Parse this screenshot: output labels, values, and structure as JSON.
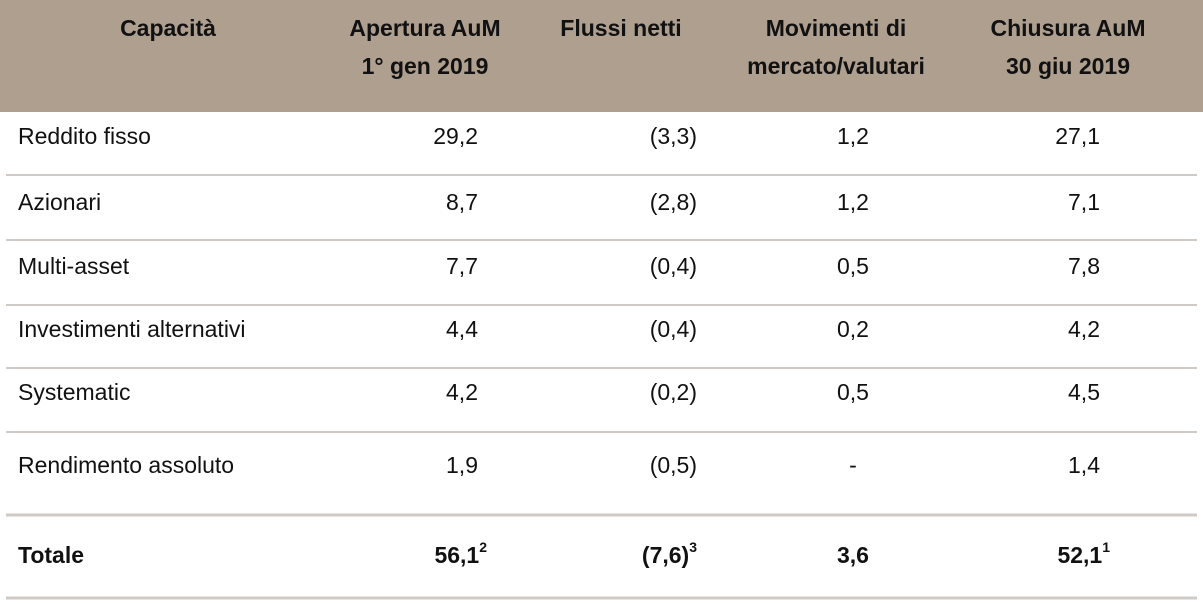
{
  "table": {
    "columns": [
      {
        "lines": [
          "Capacità"
        ]
      },
      {
        "lines": [
          "Apertura AuM",
          "1° gen 2019"
        ]
      },
      {
        "lines": [
          "Flussi netti"
        ]
      },
      {
        "lines": [
          "Movimenti di",
          "mercato/valutari"
        ]
      },
      {
        "lines": [
          "Chiusura AuM",
          "30 giu 2019"
        ]
      }
    ],
    "rows": [
      {
        "label": "Reddito fisso",
        "cells": [
          "29,2",
          "(3,3)",
          "1,2",
          "27,1"
        ]
      },
      {
        "label": "Azionari",
        "cells": [
          "8,7",
          "(2,8)",
          "1,2",
          "7,1"
        ]
      },
      {
        "label": "Multi-asset",
        "cells": [
          "7,7",
          "(0,4)",
          "0,5",
          "7,8"
        ]
      },
      {
        "label": "Investimenti alternativi",
        "cells": [
          "4,4",
          "(0,4)",
          "0,2",
          "4,2"
        ]
      },
      {
        "label": "Systematic",
        "cells": [
          "4,2",
          "(0,2)",
          "0,5",
          "4,5"
        ]
      },
      {
        "label": "Rendimento assoluto",
        "cells": [
          "1,9",
          "(0,5)",
          "-",
          "1,4"
        ]
      }
    ],
    "total": {
      "label": "Totale",
      "cells": [
        {
          "text": "56,1",
          "note": "2"
        },
        {
          "text": "(7,6)",
          "note": "3"
        },
        {
          "text": "3,6"
        },
        {
          "text": "52,1",
          "note": "1"
        }
      ]
    }
  }
}
